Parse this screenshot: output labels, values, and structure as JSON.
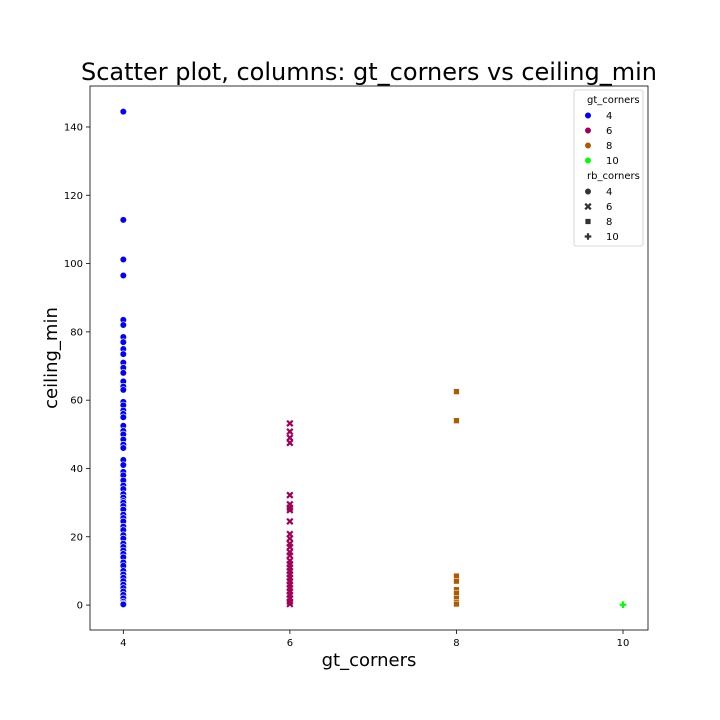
{
  "chart_data": {
    "type": "scatter",
    "title": "Scatter plot, columns: gt_corners vs ceiling_min",
    "xlabel": "gt_corners",
    "ylabel": "ceiling_min",
    "xlim": [
      3.6,
      10.3
    ],
    "ylim": [
      -7.3,
      152
    ],
    "xticks": [
      4,
      6,
      8,
      10
    ],
    "yticks": [
      0,
      20,
      40,
      60,
      80,
      100,
      120,
      140
    ],
    "grid": false,
    "legend_placement": "top-right",
    "legend": {
      "hue_title": "gt_corners",
      "hue_entries": [
        {
          "label": "4",
          "color": "#0000ff"
        },
        {
          "label": "6",
          "color": "#a0005a"
        },
        {
          "label": "8",
          "color": "#b05a00"
        },
        {
          "label": "10",
          "color": "#00ff00"
        }
      ],
      "style_title": "rb_corners",
      "style_entries": [
        {
          "label": "4",
          "marker": "circle"
        },
        {
          "label": "6",
          "marker": "x"
        },
        {
          "label": "8",
          "marker": "square"
        },
        {
          "label": "10",
          "marker": "plus"
        }
      ]
    },
    "series": [
      {
        "name": "4",
        "color": "#0000ff",
        "marker": "circle",
        "x": 4,
        "y": [
          144.5,
          112.8,
          101.2,
          96.5,
          83.5,
          82.0,
          78.5,
          77.0,
          75.0,
          73.5,
          71.0,
          69.5,
          68.0,
          65.5,
          64.0,
          63.0,
          59.5,
          58.5,
          57.0,
          56.0,
          55.0,
          52.5,
          51.0,
          50.0,
          48.5,
          47.0,
          46.0,
          42.5,
          41.0,
          39.0,
          38.0,
          36.5,
          35.0,
          34.0,
          32.5,
          31.5,
          30.5,
          30.0,
          29.0,
          28.0,
          26.5,
          25.5,
          24.5,
          23.0,
          22.0,
          20.5,
          19.5,
          18.0,
          17.0,
          16.0,
          15.0,
          14.0,
          12.5,
          11.5,
          10.0,
          9.0,
          8.0,
          7.0,
          6.0,
          5.0,
          4.0,
          3.0,
          2.0,
          1.0,
          0.5,
          0.2
        ]
      },
      {
        "name": "6",
        "color": "#a0005a",
        "marker": "x",
        "x": 6,
        "y": [
          53.2,
          50.8,
          49.0,
          47.5,
          32.2,
          29.5,
          28.5,
          27.8,
          24.5,
          20.8,
          19.5,
          18.0,
          17.0,
          15.5,
          14.5,
          13.0,
          12.0,
          11.0,
          10.0,
          9.0,
          8.0,
          7.0,
          6.0,
          5.0,
          4.0,
          3.0,
          2.0,
          1.0,
          0.3
        ]
      },
      {
        "name": "8",
        "color": "#b05a00",
        "marker": "square",
        "x": 8,
        "y": [
          62.5,
          54.0,
          8.5,
          7.0,
          4.5,
          3.5,
          2.0,
          0.8,
          0.3
        ]
      },
      {
        "name": "10",
        "color": "#00ff00",
        "marker": "plus",
        "x": 10,
        "y": [
          0.1
        ]
      }
    ]
  }
}
